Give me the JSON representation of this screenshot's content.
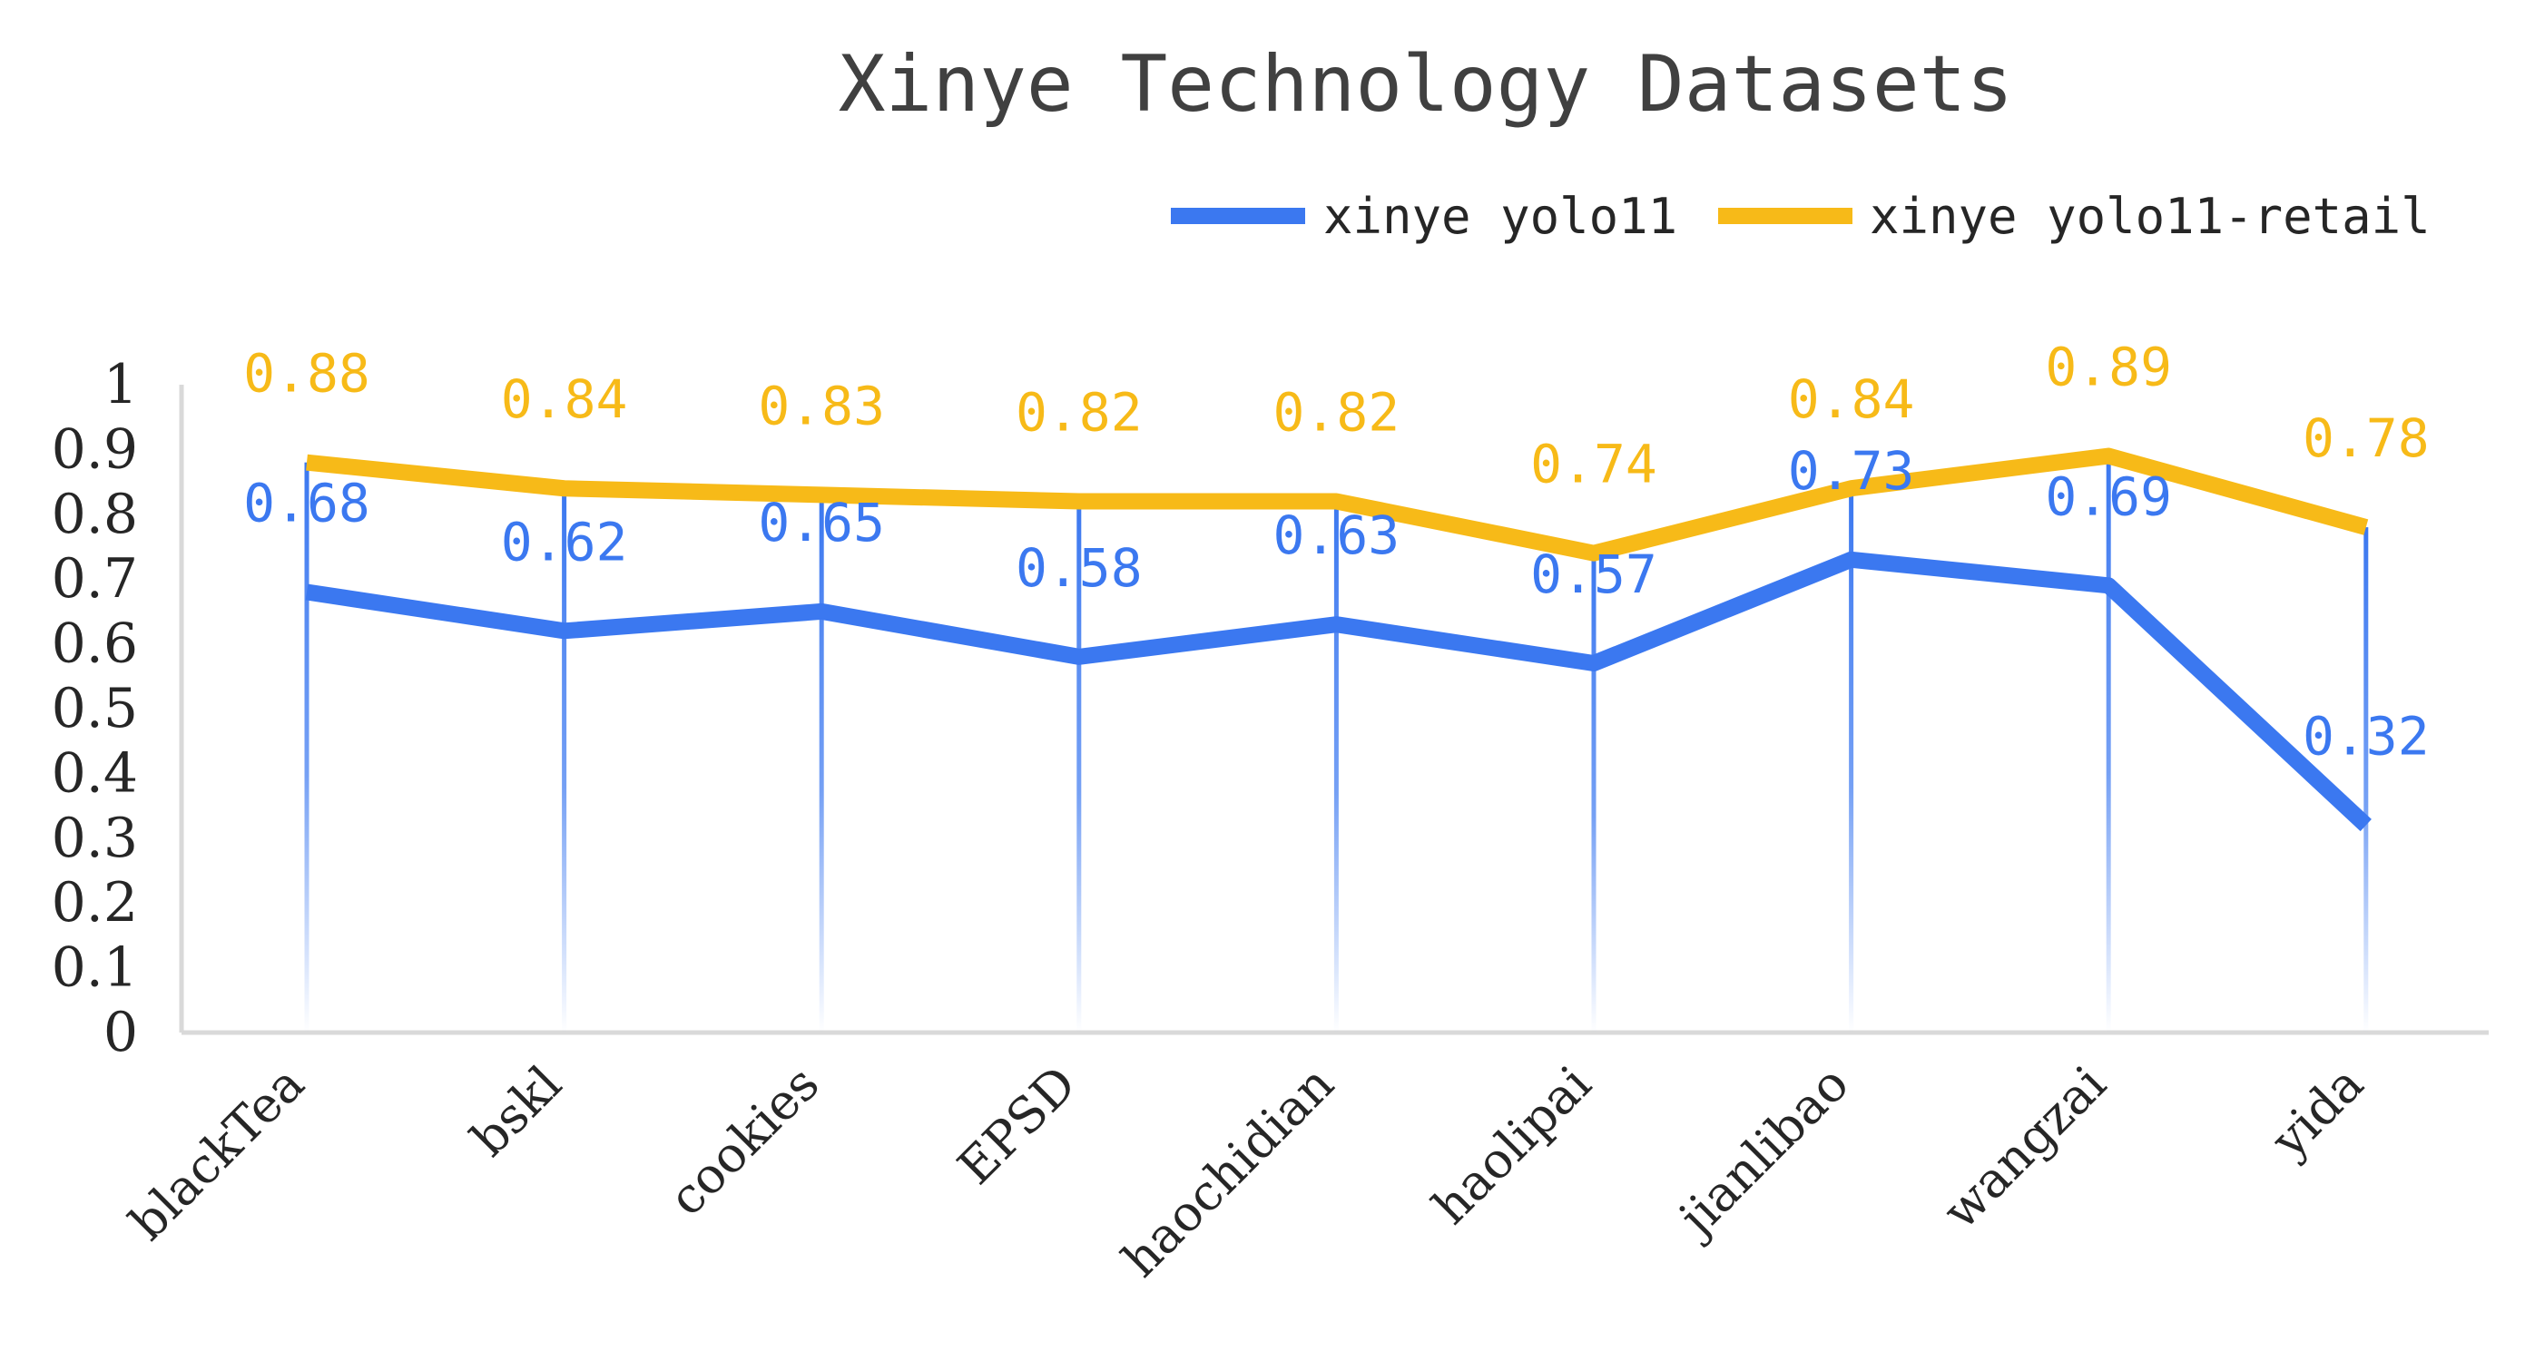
{
  "chart_data": {
    "type": "line",
    "title": "Xinye Technology Datasets",
    "categories": [
      "blackTea",
      "bskl",
      "cookies",
      "EPSD",
      "haochidian",
      "haolipai",
      "jianlibao",
      "wangzai",
      "yida"
    ],
    "series": [
      {
        "name": "xinye yolo11",
        "color": "#3B78F0",
        "values": [
          0.68,
          0.62,
          0.65,
          0.58,
          0.63,
          0.57,
          0.73,
          0.69,
          0.32
        ],
        "labels": [
          "0.68",
          "0.62",
          "0.65",
          "0.58",
          "0.63",
          "0.57",
          "0.73",
          "0.69",
          "0.32"
        ]
      },
      {
        "name": "xinye yolo11-retail",
        "color": "#F7BA18",
        "values": [
          0.88,
          0.84,
          0.83,
          0.82,
          0.82,
          0.74,
          0.84,
          0.89,
          0.78
        ],
        "labels": [
          "0.88",
          "0.84",
          "0.83",
          "0.82",
          "0.82",
          "0.74",
          "0.84",
          "0.89",
          "0.78"
        ]
      }
    ],
    "ylim": [
      0,
      1
    ],
    "yticks": [
      "0",
      "0.1",
      "0.2",
      "0.3",
      "0.4",
      "0.5",
      "0.6",
      "0.7",
      "0.8",
      "0.9",
      "1"
    ],
    "xlabel": "",
    "ylabel": "",
    "legend_position": "top-right",
    "grid": false,
    "drop_lines": true
  }
}
